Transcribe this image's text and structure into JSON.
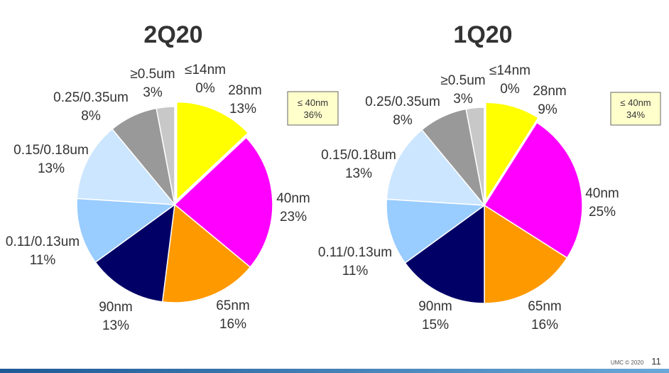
{
  "chart_data": [
    {
      "type": "pie",
      "title": "2Q20",
      "categories": [
        "28nm",
        "40nm",
        "65nm",
        "90nm",
        "0.11/0.13um",
        "0.15/0.18um",
        "0.25/0.35um",
        "≥0.5um",
        "≤14nm"
      ],
      "values": [
        13,
        23,
        16,
        13,
        11,
        13,
        8,
        3,
        0
      ],
      "value_labels": [
        "13%",
        "23%",
        "16%",
        "13%",
        "11%",
        "13%",
        "8%",
        "3%",
        "0%"
      ],
      "callout": {
        "line1": "≤ 40nm",
        "line2": "36%"
      }
    },
    {
      "type": "pie",
      "title": "1Q20",
      "categories": [
        "28nm",
        "40nm",
        "65nm",
        "90nm",
        "0.11/0.13um",
        "0.15/0.18um",
        "0.25/0.35um",
        "≥0.5um",
        "≤14nm"
      ],
      "values": [
        9,
        25,
        16,
        15,
        11,
        13,
        8,
        3,
        0
      ],
      "value_labels": [
        "9%",
        "25%",
        "16%",
        "15%",
        "11%",
        "13%",
        "8%",
        "3%",
        "0%"
      ],
      "callout": {
        "line1": "≤ 40nm",
        "line2": "34%"
      }
    }
  ],
  "colors": [
    "#ffff00",
    "#ff00ff",
    "#ff9900",
    "#000066",
    "#99ccff",
    "#cce6ff",
    "#999999",
    "#c8c8c8",
    "#e6e6e6"
  ],
  "footer": {
    "copyright": "UMC © 2020",
    "page_number": "11"
  }
}
